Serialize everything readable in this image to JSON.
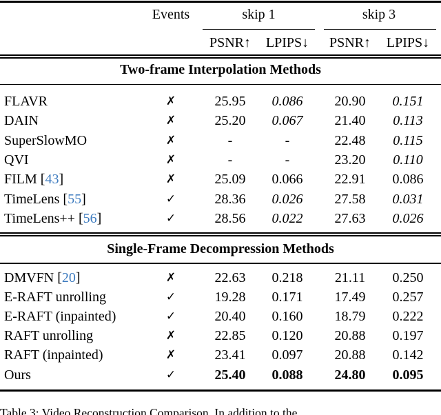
{
  "table": {
    "header": {
      "events": "Events",
      "group1": "skip 1",
      "group2": "skip 3",
      "psnr1": "PSNR↑",
      "lpips1": "LPIPS↓",
      "psnr3": "PSNR↑",
      "lpips3": "LPIPS↓"
    },
    "marks": {
      "yes": "✓",
      "no": "✗"
    },
    "colors": {
      "cite_blue": "#3d7bbf",
      "text": "#000000",
      "background": "#ffffff"
    },
    "sections": [
      {
        "title": "Two-frame Interpolation Methods",
        "rows": [
          {
            "method": "FLAVR",
            "cite": "",
            "events": "no",
            "values": [
              {
                "t": "25.95",
                "s": "n"
              },
              {
                "t": "0.086",
                "s": "i"
              },
              {
                "t": "20.90",
                "s": "n"
              },
              {
                "t": "0.151",
                "s": "i"
              }
            ]
          },
          {
            "method": "DAIN",
            "cite": "",
            "events": "no",
            "values": [
              {
                "t": "25.20",
                "s": "n"
              },
              {
                "t": "0.067",
                "s": "i"
              },
              {
                "t": "21.40",
                "s": "n"
              },
              {
                "t": "0.113",
                "s": "i"
              }
            ]
          },
          {
            "method": "SuperSlowMO",
            "cite": "",
            "events": "no",
            "values": [
              {
                "t": "-",
                "s": "n"
              },
              {
                "t": "-",
                "s": "n"
              },
              {
                "t": "22.48",
                "s": "n"
              },
              {
                "t": "0.115",
                "s": "i"
              }
            ]
          },
          {
            "method": "QVI",
            "cite": "",
            "events": "no",
            "values": [
              {
                "t": "-",
                "s": "n"
              },
              {
                "t": "-",
                "s": "n"
              },
              {
                "t": "23.20",
                "s": "n"
              },
              {
                "t": "0.110",
                "s": "i"
              }
            ]
          },
          {
            "method": "FILM",
            "cite": "43",
            "events": "no",
            "values": [
              {
                "t": "25.09",
                "s": "n"
              },
              {
                "t": "0.066",
                "s": "n"
              },
              {
                "t": "22.91",
                "s": "n"
              },
              {
                "t": "0.086",
                "s": "n"
              }
            ]
          },
          {
            "method": "TimeLens",
            "cite": "55",
            "events": "yes",
            "values": [
              {
                "t": "28.36",
                "s": "n"
              },
              {
                "t": "0.026",
                "s": "i"
              },
              {
                "t": "27.58",
                "s": "n"
              },
              {
                "t": "0.031",
                "s": "i"
              }
            ]
          },
          {
            "method": "TimeLens++",
            "cite": "56",
            "events": "yes",
            "values": [
              {
                "t": "28.56",
                "s": "n"
              },
              {
                "t": "0.022",
                "s": "i"
              },
              {
                "t": "27.63",
                "s": "n"
              },
              {
                "t": "0.026",
                "s": "i"
              }
            ]
          }
        ]
      },
      {
        "title": "Single-Frame Decompression Methods",
        "rows": [
          {
            "method": "DMVFN",
            "cite": "20",
            "events": "no",
            "values": [
              {
                "t": "22.63",
                "s": "n"
              },
              {
                "t": "0.218",
                "s": "n"
              },
              {
                "t": "21.11",
                "s": "n"
              },
              {
                "t": "0.250",
                "s": "n"
              }
            ]
          },
          {
            "method": "E-RAFT unrolling",
            "cite": "",
            "events": "yes",
            "values": [
              {
                "t": "19.28",
                "s": "n"
              },
              {
                "t": "0.171",
                "s": "n"
              },
              {
                "t": "17.49",
                "s": "n"
              },
              {
                "t": "0.257",
                "s": "n"
              }
            ]
          },
          {
            "method": "E-RAFT (inpainted)",
            "cite": "",
            "events": "yes",
            "values": [
              {
                "t": "20.40",
                "s": "n"
              },
              {
                "t": "0.160",
                "s": "n"
              },
              {
                "t": "18.79",
                "s": "n"
              },
              {
                "t": "0.222",
                "s": "n"
              }
            ]
          },
          {
            "method": "RAFT unrolling",
            "cite": "",
            "events": "no",
            "values": [
              {
                "t": "22.85",
                "s": "n"
              },
              {
                "t": "0.120",
                "s": "n"
              },
              {
                "t": "20.88",
                "s": "n"
              },
              {
                "t": "0.197",
                "s": "n"
              }
            ]
          },
          {
            "method": "RAFT (inpainted)",
            "cite": "",
            "events": "no",
            "values": [
              {
                "t": "23.41",
                "s": "n"
              },
              {
                "t": "0.097",
                "s": "n"
              },
              {
                "t": "20.88",
                "s": "n"
              },
              {
                "t": "0.142",
                "s": "n"
              }
            ]
          },
          {
            "method": "Ours",
            "cite": "",
            "events": "yes",
            "values": [
              {
                "t": "25.40",
                "s": "b"
              },
              {
                "t": "0.088",
                "s": "b"
              },
              {
                "t": "24.80",
                "s": "b"
              },
              {
                "t": "0.095",
                "s": "b"
              }
            ]
          }
        ]
      }
    ],
    "caption": "Table 3:  Video Reconstruction Comparison.  In addition to the"
  }
}
